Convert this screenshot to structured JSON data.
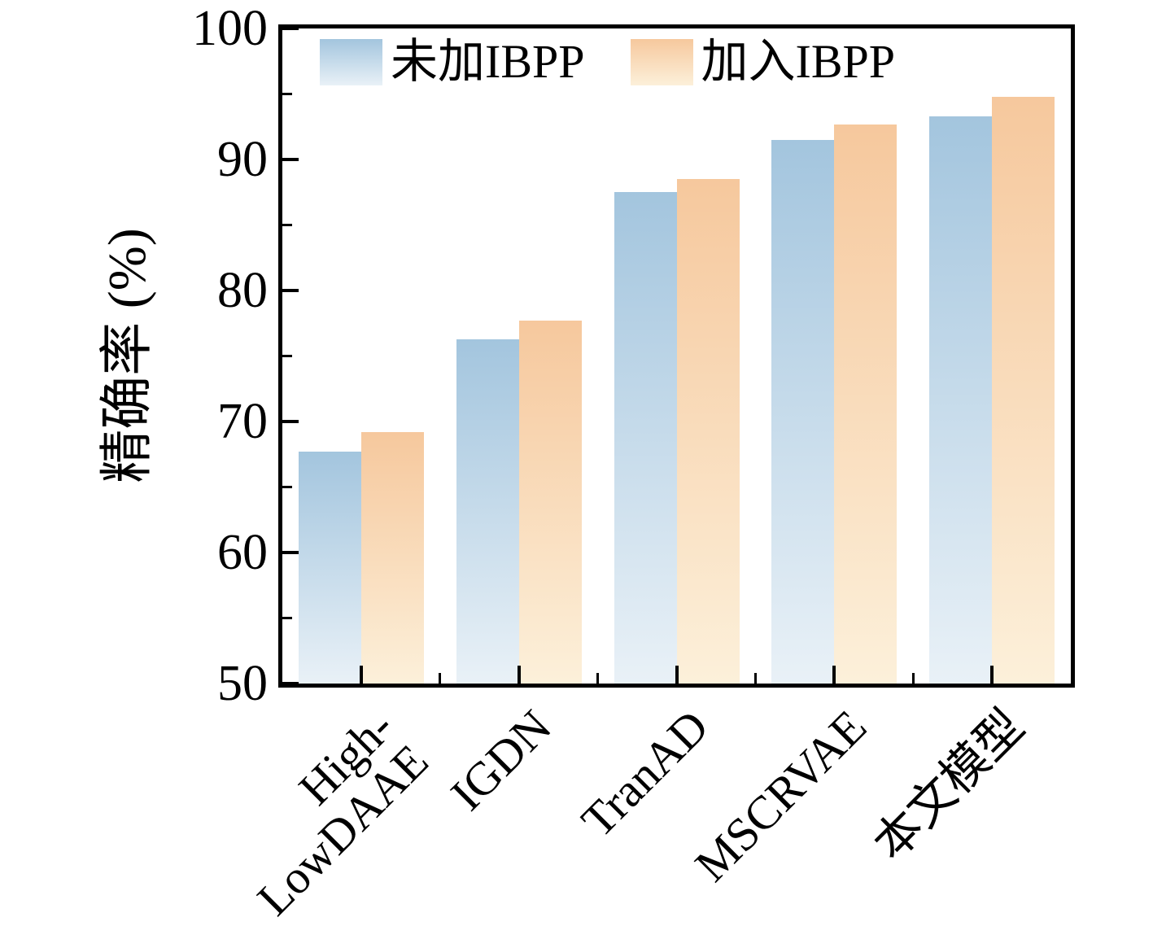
{
  "chart_data": {
    "type": "bar",
    "title": "",
    "ylabel": "精确率 (%)",
    "xlabel": "",
    "ylim": [
      50,
      100
    ],
    "yticks": [
      50,
      60,
      70,
      80,
      90,
      100
    ],
    "yticks_minor": [
      55,
      65,
      75,
      85,
      95
    ],
    "categories": [
      "High-\nLowDAAE",
      "IGDN",
      "TranAD",
      "MSCRVAE",
      "本文模型"
    ],
    "series": [
      {
        "name": "未加IBPP",
        "values": [
          67.7,
          76.3,
          87.5,
          91.5,
          93.3
        ],
        "color_top": "#a3c5de",
        "color_bottom": "#e9f1f7"
      },
      {
        "name": "加入IBPP",
        "values": [
          69.2,
          77.7,
          88.5,
          92.7,
          94.8
        ],
        "color_top": "#f6c89d",
        "color_bottom": "#fcf0da"
      }
    ],
    "legend_position": "top-left",
    "grid": false,
    "frame_color": "#000000",
    "background_color": "#ffffff"
  }
}
